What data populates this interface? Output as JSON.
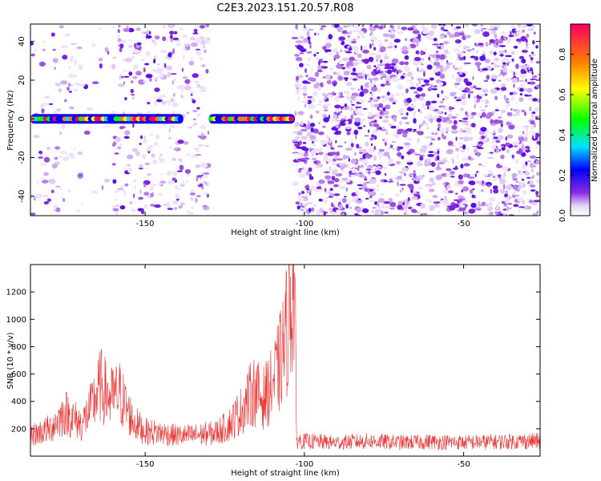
{
  "figure_title": "C2E3.2023.151.20.57.R08",
  "chart_data": [
    {
      "type": "heatmap",
      "title": "",
      "xlabel": "Height of straight line (km)",
      "ylabel": "Frequency (Hz)",
      "xlim": [
        -186,
        -26
      ],
      "ylim": [
        -50,
        49
      ],
      "x_ticks": [
        -150,
        -100,
        -50
      ],
      "y_ticks": [
        -40,
        -20,
        0,
        20,
        40
      ],
      "zlim": [
        0,
        0.95
      ],
      "colorbar": {
        "label": "Normalized spectral amplitude",
        "ticks": [
          0.0,
          0.2,
          0.4,
          0.6,
          0.8
        ],
        "colors": [
          "#ffffff",
          "#e8d8f8",
          "#8a2be2",
          "#0000ff",
          "#00e0ff",
          "#00ff00",
          "#ffff00",
          "#ff8000",
          "#ff0060"
        ]
      },
      "signal_band": {
        "frequency": 0,
        "segments": [
          [
            -186,
            -138
          ],
          [
            -130,
            -103
          ]
        ]
      },
      "noise_regions": [
        {
          "x": [
            -186,
            -170
          ],
          "density": "low"
        },
        {
          "x": [
            -170,
            -160
          ],
          "density": "very low"
        },
        {
          "x": [
            -160,
            -130
          ],
          "density": "medium"
        },
        {
          "x": [
            -130,
            -103
          ],
          "density": "none"
        },
        {
          "x": [
            -103,
            -26
          ],
          "density": "high"
        }
      ]
    },
    {
      "type": "line",
      "title": "",
      "xlabel": "Height of straight line (km)",
      "ylabel": "SNR (10 * v/v)",
      "xlim": [
        -186,
        -26
      ],
      "ylim": [
        0,
        1400
      ],
      "x_ticks": [
        -150,
        -100,
        -50
      ],
      "y_ticks": [
        200,
        400,
        600,
        800,
        1000,
        1200
      ],
      "color": "#ee3333",
      "series": [
        {
          "x": [
            -186,
            -180,
            -175,
            -170,
            -167,
            -164,
            -161,
            -158,
            -154,
            -150,
            -145,
            -140,
            -136,
            -132,
            -128,
            -124,
            -120,
            -116,
            -113,
            -110,
            -108,
            -106,
            -104,
            -103,
            -102.5,
            -101,
            -90,
            -80,
            -70,
            -60,
            -50,
            -40,
            -30,
            -26
          ],
          "values": [
            150,
            200,
            320,
            230,
            350,
            520,
            420,
            460,
            260,
            180,
            170,
            150,
            150,
            160,
            170,
            220,
            330,
            480,
            420,
            520,
            650,
            850,
            1200,
            1300,
            120,
            110,
            100,
            110,
            100,
            105,
            100,
            105,
            110,
            110
          ]
        }
      ]
    }
  ]
}
